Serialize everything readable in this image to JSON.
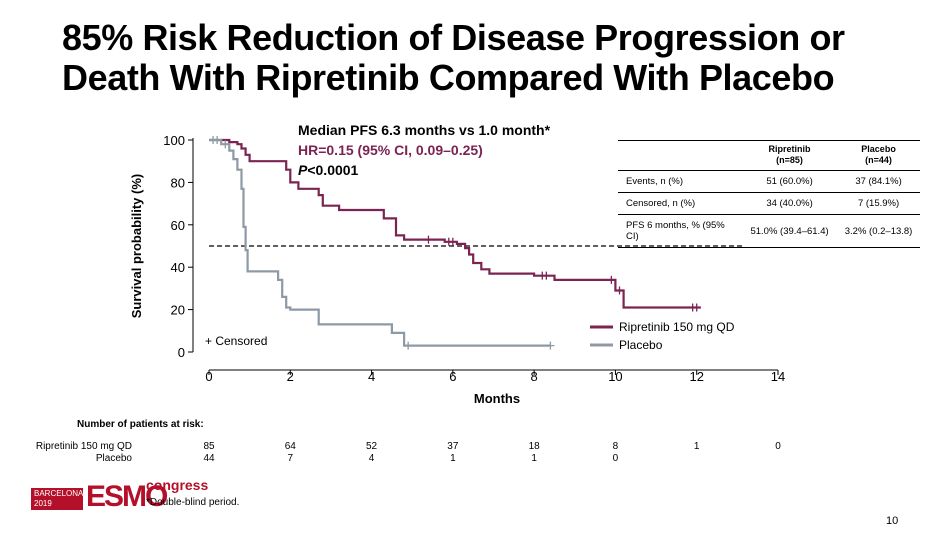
{
  "title": {
    "line1": "85% Risk Reduction of Disease Progression or",
    "line2": "Death With Ripretinib Compared With Placebo"
  },
  "stats": {
    "median": "Median PFS 6.3 months vs 1.0 month*",
    "hr": "HR=0.15 (95% CI, 0.09–0.25)",
    "p_prefix": "P",
    "p_value": "<0.0001"
  },
  "table": {
    "col1_name": "Ripretinib",
    "col1_n": "(n=85)",
    "col2_name": "Placebo",
    "col2_n": "(n=44)",
    "rows": [
      {
        "label": "Events, n (%)",
        "ripretinib": "51 (60.0%)",
        "placebo": "37 (84.1%)"
      },
      {
        "label": "Censored, n (%)",
        "ripretinib": "34 (40.0%)",
        "placebo": "7 (15.9%)"
      },
      {
        "label": "PFS 6 months, % (95% CI)",
        "ripretinib": "51.0% (39.4–61.4)",
        "placebo": "3.2% (0.2–13.8)"
      }
    ]
  },
  "risk": {
    "title": "Number of patients at risk:",
    "rows": [
      {
        "name": "Ripretinib 150 mg QD",
        "values": [
          "85",
          "64",
          "52",
          "37",
          "18",
          "8",
          "1",
          "0"
        ]
      },
      {
        "name": "Placebo",
        "values": [
          "44",
          "7",
          "4",
          "1",
          "1",
          "0"
        ]
      }
    ]
  },
  "footer": {
    "logo_city": "BARCELONA",
    "logo_year": "2019",
    "logo_main": "ESMO",
    "logo_congress": "congress",
    "footnote": "*Double-blind period.",
    "page": "10"
  },
  "colors": {
    "ripretinib": "#7b2452",
    "placebo": "#8d9aa6",
    "axis": "#000000",
    "brand": "#b5102a"
  },
  "chart_data": {
    "type": "line",
    "title": "",
    "xlabel": "Months",
    "ylabel": "Survival probability (%)",
    "xlim": [
      0,
      14
    ],
    "ylim": [
      0,
      100
    ],
    "x_ticks": [
      0,
      2,
      4,
      6,
      8,
      10,
      12,
      14
    ],
    "y_ticks": [
      0,
      20,
      40,
      60,
      80,
      100
    ],
    "reference_line": {
      "y": 50,
      "style": "dashed"
    },
    "censored_label": "+ Censored",
    "legend_position": "bottom-right",
    "series": [
      {
        "name": "Ripretinib 150 mg QD",
        "step_points": [
          [
            0,
            100
          ],
          [
            0.5,
            100
          ],
          [
            0.5,
            99
          ],
          [
            0.7,
            99
          ],
          [
            0.7,
            98
          ],
          [
            0.8,
            98
          ],
          [
            0.8,
            96
          ],
          [
            0.9,
            96
          ],
          [
            0.9,
            93
          ],
          [
            1.0,
            93
          ],
          [
            1.0,
            90
          ],
          [
            1.9,
            90
          ],
          [
            1.9,
            86
          ],
          [
            2.0,
            86
          ],
          [
            2.0,
            80
          ],
          [
            2.2,
            80
          ],
          [
            2.2,
            77
          ],
          [
            2.7,
            77
          ],
          [
            2.7,
            74
          ],
          [
            2.8,
            74
          ],
          [
            2.8,
            69
          ],
          [
            3.2,
            69
          ],
          [
            3.2,
            67
          ],
          [
            4.3,
            67
          ],
          [
            4.3,
            63
          ],
          [
            4.6,
            63
          ],
          [
            4.6,
            55
          ],
          [
            4.8,
            55
          ],
          [
            4.8,
            53
          ],
          [
            5.8,
            53
          ],
          [
            5.8,
            52
          ],
          [
            6.1,
            52
          ],
          [
            6.1,
            51
          ],
          [
            6.3,
            51
          ],
          [
            6.3,
            49
          ],
          [
            6.4,
            49
          ],
          [
            6.4,
            46
          ],
          [
            6.5,
            46
          ],
          [
            6.5,
            42
          ],
          [
            6.7,
            42
          ],
          [
            6.7,
            39
          ],
          [
            6.9,
            39
          ],
          [
            6.9,
            37
          ],
          [
            8.0,
            37
          ],
          [
            8.0,
            36
          ],
          [
            8.5,
            36
          ],
          [
            8.5,
            34
          ],
          [
            10.0,
            34
          ],
          [
            10.0,
            29
          ],
          [
            10.2,
            29
          ],
          [
            10.2,
            21
          ],
          [
            12.1,
            21
          ]
        ],
        "censored_x": [
          5.4,
          5.9,
          6.0,
          8.2,
          8.3,
          9.9,
          10.1,
          11.9,
          12.0
        ]
      },
      {
        "name": "Placebo",
        "step_points": [
          [
            0,
            100
          ],
          [
            0.3,
            100
          ],
          [
            0.3,
            98
          ],
          [
            0.5,
            98
          ],
          [
            0.5,
            95
          ],
          [
            0.6,
            95
          ],
          [
            0.6,
            91
          ],
          [
            0.7,
            91
          ],
          [
            0.7,
            86
          ],
          [
            0.8,
            86
          ],
          [
            0.8,
            77
          ],
          [
            0.85,
            77
          ],
          [
            0.85,
            59
          ],
          [
            0.9,
            59
          ],
          [
            0.9,
            48
          ],
          [
            0.95,
            48
          ],
          [
            0.95,
            38
          ],
          [
            1.7,
            38
          ],
          [
            1.7,
            34
          ],
          [
            1.8,
            34
          ],
          [
            1.8,
            26
          ],
          [
            1.9,
            26
          ],
          [
            1.9,
            21
          ],
          [
            2.0,
            21
          ],
          [
            2.0,
            20
          ],
          [
            2.7,
            20
          ],
          [
            2.7,
            13
          ],
          [
            4.5,
            13
          ],
          [
            4.5,
            9
          ],
          [
            4.8,
            9
          ],
          [
            4.8,
            3
          ],
          [
            8.4,
            3
          ]
        ],
        "censored_x": [
          0.1,
          0.2,
          0.4,
          4.9,
          8.4
        ]
      }
    ]
  }
}
